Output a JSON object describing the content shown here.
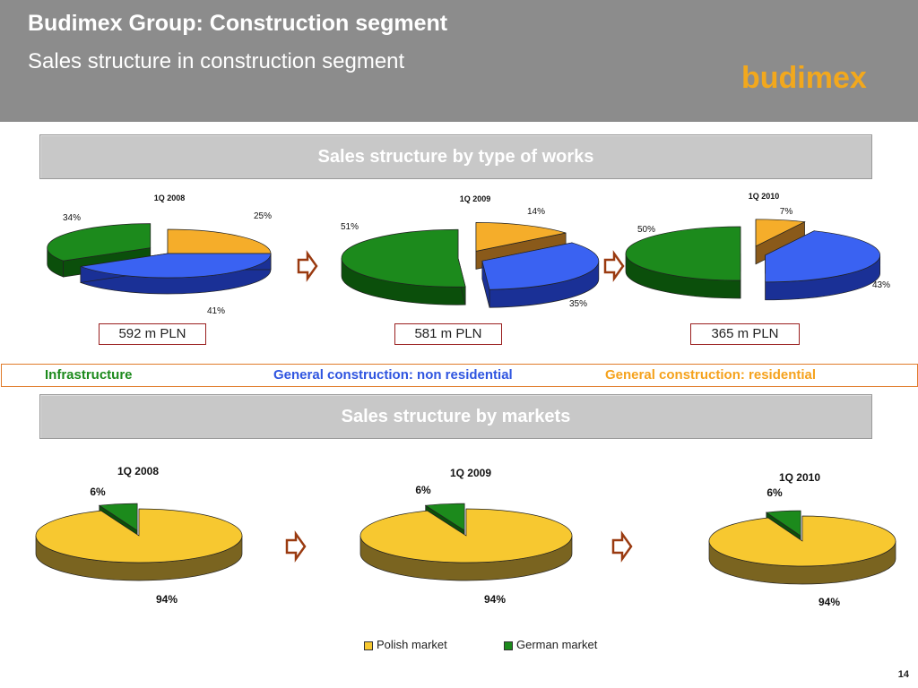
{
  "header": {
    "title": "Budimex Group: Construction segment",
    "subtitle": "Sales structure in construction segment",
    "logo": "budimex"
  },
  "section_works": {
    "title": "Sales structure by type of works"
  },
  "section_markets": {
    "title": "Sales structure by markets"
  },
  "totals": [
    "592 m PLN",
    "581 m PLN",
    "365 m PLN"
  ],
  "works_legend": {
    "infrastructure": "Infrastructure",
    "non_residential": "General construction: non residential",
    "residential": "General construction: residential"
  },
  "markets_legend": {
    "polish": "Polish market",
    "german": "German market"
  },
  "page_number": "14",
  "colors": {
    "header_bg": "#8c8c8c",
    "logo": "#f2a81d",
    "infrastructure": "#1c8a1c",
    "non_residential": "#3a62f2",
    "residential": "#f5ad2a",
    "polish": "#f7c830",
    "german": "#1c8a1c",
    "arrow": "#9a3a10",
    "box_border": "#9a1f1f"
  },
  "chart_data": [
    {
      "type": "pie",
      "title": "1Q 2008",
      "categories": [
        "General construction: residential",
        "General construction: non residential",
        "Infrastructure"
      ],
      "values": [
        25,
        41,
        34
      ],
      "labels": [
        "25%",
        "41%",
        "34%"
      ],
      "exploded": [
        "General construction: non residential"
      ]
    },
    {
      "type": "pie",
      "title": "1Q 2009",
      "categories": [
        "General construction: residential",
        "General construction: non residential",
        "Infrastructure"
      ],
      "values": [
        14,
        35,
        51
      ],
      "labels": [
        "14%",
        "35%",
        "51%"
      ],
      "exploded": [
        "General construction: residential",
        "General construction: non residential",
        "Infrastructure"
      ]
    },
    {
      "type": "pie",
      "title": "1Q 2010",
      "categories": [
        "General construction: residential",
        "General construction: non residential",
        "Infrastructure"
      ],
      "values": [
        7,
        43,
        50
      ],
      "labels": [
        "7%",
        "43%",
        "50%"
      ],
      "exploded": [
        "General construction: residential",
        "General construction: non residential",
        "Infrastructure"
      ]
    },
    {
      "type": "pie",
      "title": "1Q 2008",
      "categories": [
        "Polish market",
        "German market"
      ],
      "values": [
        94,
        6
      ],
      "labels": [
        "94%",
        "6%"
      ],
      "exploded": [
        "German market"
      ]
    },
    {
      "type": "pie",
      "title": "1Q 2009",
      "categories": [
        "Polish market",
        "German market"
      ],
      "values": [
        94,
        6
      ],
      "labels": [
        "94%",
        "6%"
      ],
      "exploded": [
        "German market"
      ]
    },
    {
      "type": "pie",
      "title": "1Q 2010",
      "categories": [
        "Polish market",
        "German market"
      ],
      "values": [
        94,
        6
      ],
      "labels": [
        "94%",
        "6%"
      ],
      "exploded": [
        "German market"
      ]
    }
  ]
}
